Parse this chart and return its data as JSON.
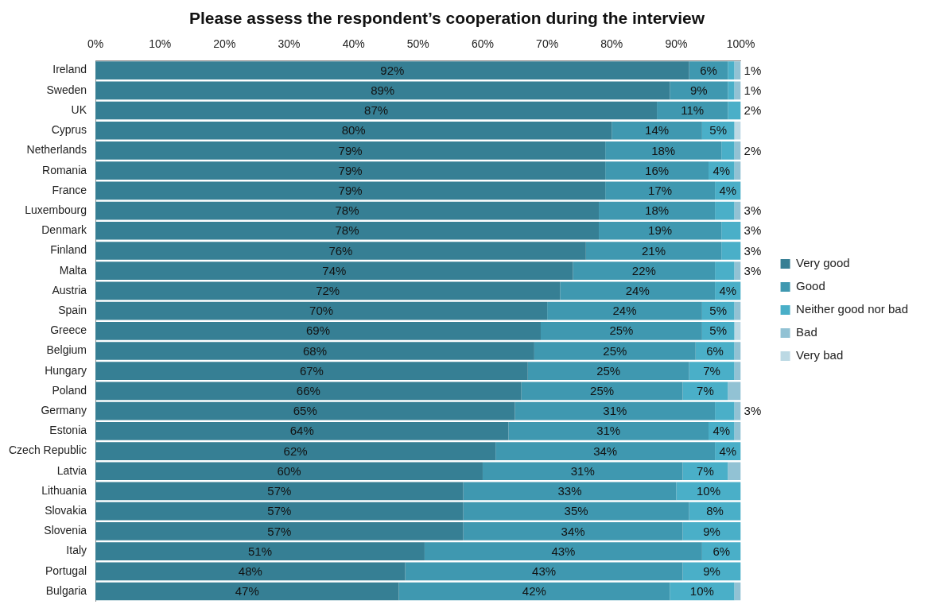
{
  "chart_data": {
    "type": "bar",
    "orientation": "horizontal",
    "stacked": true,
    "title": "Please assess the respondent’s cooperation during the interview",
    "categories": [
      "Ireland",
      "Sweden",
      "UK",
      "Cyprus",
      "Netherlands",
      "Romania",
      "France",
      "Luxembourg",
      "Denmark",
      "Finland",
      "Malta",
      "Austria",
      "Spain",
      "Greece",
      "Belgium",
      "Hungary",
      "Poland",
      "Germany",
      "Estonia",
      "Czech Republic",
      "Latvia",
      "Lithuania",
      "Slovakia",
      "Slovenia",
      "Italy",
      "Portugal",
      "Bulgaria"
    ],
    "series": [
      {
        "name": "Very good",
        "color": "#367f94",
        "values": [
          92,
          89,
          87,
          80,
          79,
          79,
          79,
          78,
          78,
          76,
          74,
          72,
          70,
          69,
          68,
          67,
          66,
          65,
          64,
          62,
          60,
          57,
          57,
          57,
          51,
          48,
          47
        ],
        "value_labels": [
          "92%",
          "89%",
          "87%",
          "80%",
          "79%",
          "79%",
          "79%",
          "78%",
          "78%",
          "76%",
          "74%",
          "72%",
          "70%",
          "69%",
          "68%",
          "67%",
          "66%",
          "65%",
          "64%",
          "62%",
          "60%",
          "57%",
          "57%",
          "57%",
          "51%",
          "48%",
          "47%"
        ]
      },
      {
        "name": "Good",
        "color": "#3f98b0",
        "values": [
          6,
          9,
          11,
          14,
          18,
          16,
          17,
          18,
          19,
          21,
          22,
          24,
          24,
          25,
          25,
          25,
          25,
          31,
          31,
          34,
          31,
          33,
          35,
          34,
          43,
          43,
          42
        ],
        "value_labels": [
          "6%",
          "9%",
          "11%",
          "14%",
          "18%",
          "16%",
          "17%",
          "18%",
          "19%",
          "21%",
          "22%",
          "24%",
          "24%",
          "25%",
          "25%",
          "25%",
          "25%",
          "31%",
          "31%",
          "34%",
          "31%",
          "33%",
          "35%",
          "34%",
          "43%",
          "43%",
          "42%"
        ]
      },
      {
        "name": "Neither good nor bad",
        "color": "#4aafc8",
        "values": [
          1,
          1,
          2,
          5,
          2,
          4,
          4,
          3,
          3,
          3,
          3,
          4,
          5,
          5,
          6,
          7,
          7,
          3,
          4,
          4,
          7,
          10,
          8,
          9,
          6,
          9,
          10
        ],
        "value_labels": [
          "1%",
          "1%",
          "2%",
          "5%",
          "2%",
          "4%",
          "4%",
          "3%",
          "3%",
          "3%",
          "3%",
          "4%",
          "5%",
          "5%",
          "6%",
          "7%",
          "7%",
          "3%",
          "4%",
          "4%",
          "7%",
          "10%",
          "8%",
          "9%",
          "6%",
          "9%",
          "10%"
        ]
      },
      {
        "name": "Bad",
        "color": "#92c2d4",
        "values": [
          1,
          1,
          0,
          0,
          1,
          1,
          0,
          1,
          0,
          0,
          1,
          0,
          1,
          0,
          1,
          1,
          2,
          1,
          1,
          0,
          2,
          0,
          0,
          0,
          0,
          0,
          1
        ]
      },
      {
        "name": "Very bad",
        "color": "#bcd9e4",
        "values": [
          0,
          0,
          0,
          1,
          0,
          0,
          0,
          0,
          0,
          0,
          0,
          0,
          0,
          1,
          0,
          0,
          0,
          0,
          0,
          0,
          0,
          0,
          0,
          0,
          0,
          0,
          0
        ]
      }
    ],
    "xlim": [
      0,
      100
    ],
    "xticks": [
      {
        "value": 0,
        "label": "0%"
      },
      {
        "value": 10,
        "label": "10%"
      },
      {
        "value": 20,
        "label": "20%"
      },
      {
        "value": 30,
        "label": "30%"
      },
      {
        "value": 40,
        "label": "40%"
      },
      {
        "value": 50,
        "label": "50%"
      },
      {
        "value": 60,
        "label": "60%"
      },
      {
        "value": 70,
        "label": "70%"
      },
      {
        "value": 80,
        "label": "80%"
      },
      {
        "value": 90,
        "label": "90%"
      },
      {
        "value": 100,
        "label": "100%"
      }
    ],
    "grid": false,
    "legend": "right"
  }
}
